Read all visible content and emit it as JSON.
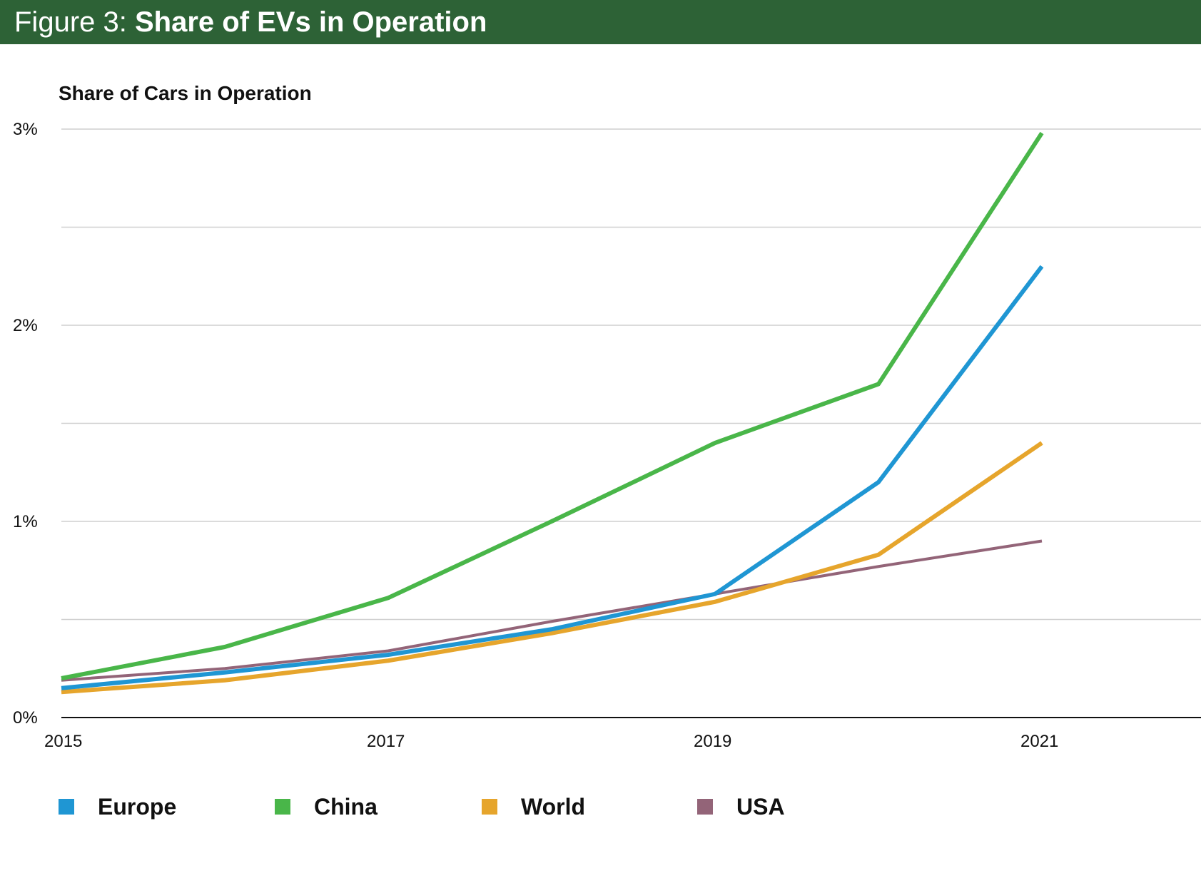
{
  "header": {
    "figure_label": "Figure 3: ",
    "figure_title": "Share of EVs in Operation"
  },
  "chart_data": {
    "type": "line",
    "title": "Figure 3: Share of EVs in Operation",
    "ylabel": "Share of Cars in Operation",
    "xlabel": "",
    "x": [
      2015,
      2016,
      2017,
      2018,
      2019,
      2020,
      2021
    ],
    "xlim": [
      2015,
      2022
    ],
    "x_ticks": [
      "2015",
      "2017",
      "2019",
      "2021"
    ],
    "ylim": [
      0,
      3
    ],
    "y_ticks": [
      "0%",
      "1%",
      "2%",
      "3%"
    ],
    "grid": true,
    "legend_position": "bottom",
    "series": [
      {
        "name": "Europe",
        "color": "#1f96d3",
        "values": [
          0.15,
          0.23,
          0.32,
          0.45,
          0.63,
          1.2,
          2.3
        ]
      },
      {
        "name": "China",
        "color": "#49b649",
        "values": [
          0.2,
          0.36,
          0.61,
          1.0,
          1.4,
          1.7,
          2.98
        ]
      },
      {
        "name": "World",
        "color": "#e6a52c",
        "values": [
          0.13,
          0.19,
          0.29,
          0.43,
          0.59,
          0.83,
          1.4
        ]
      },
      {
        "name": "USA",
        "color": "#936478",
        "values": [
          0.19,
          0.25,
          0.34,
          0.49,
          0.63,
          0.77,
          0.9
        ]
      }
    ]
  }
}
